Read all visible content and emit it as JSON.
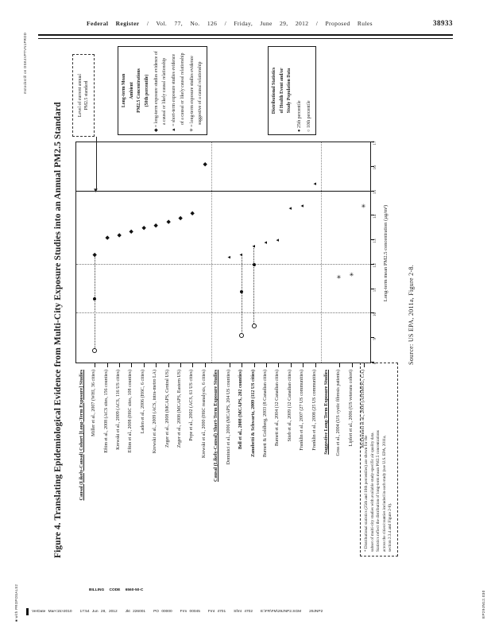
{
  "page_header": {
    "journal": "Federal Register",
    "meta": "/ Vol. 77, No. 126 / Friday, June 29, 2012 / Proposed Rules",
    "page_number": "38933"
  },
  "margins": {
    "stamp_top": "mstockstill on DSK4VPTVN1PROD",
    "stamp_bottom": "■ with PROPOSALS2",
    "graphic_tag": "EP29JN12.030"
  },
  "figure": {
    "title": "Figure 4. Translating Epidemiological Evidence from Multi-City Exposure Studies into an Annual PM2.5 Standard",
    "standard_note": {
      "line1": "Level of current annual",
      "line2": "PM2.5 standard"
    },
    "legend_symbols": {
      "header_lines": [
        "Long-term Mean",
        "Ambient",
        "PM2.5 Concentrations",
        "(50th percentile)"
      ],
      "entries": [
        {
          "symbol": "◆",
          "text": "= long-term exposure studies evidence of a causal or likely causal relationship"
        },
        {
          "symbol": "▲",
          "text": "= short-term exposure studies evidence of a causal or likely causal relationship"
        },
        {
          "symbol": "✳",
          "text": "= long-term exposure studies evidence suggestive of a causal relationship"
        }
      ]
    },
    "legend_stats": {
      "header_lines": [
        "Distributional Statistics",
        "of Health Event and/or",
        "Study Population Data"
      ],
      "entries": [
        {
          "symbol": "●",
          "text": "25th percentile"
        },
        {
          "symbol": "○",
          "text": "10th percentile"
        }
      ]
    },
    "source": "Source: US EPA, 2011a, Figure 2-8.",
    "notes": [
      "* Distributional statistics (25th and 10th percentiles) are shown for the",
      "subset of multi-city studies with available study-specific air quality data.",
      "Statistics reflect the distribution of long-term mean PM2.5 concentrations",
      "across the cities/counties included in each study (see U.S. EPA, 2011a,",
      "section 2.3.4 and Figure 2-8)."
    ]
  },
  "chart_data": {
    "type": "scatter",
    "orientation": "horizontal dot plot, printed rotated 90° counterclockwise on the page",
    "title": "Figure 4. Translating Epidemiological Evidence from Multi-City Exposure Studies into an Annual PM2.5 Standard",
    "xlabel": "Long-term mean PM2.5 concentration (µg/m³)",
    "axis": {
      "min": 8,
      "max": 17,
      "ticks": [
        8,
        9,
        10,
        11,
        12,
        13,
        14,
        15,
        16,
        17
      ],
      "reference_line": 15,
      "dotted_gridlines": [
        10,
        12
      ]
    },
    "rows": [
      {
        "type": "header",
        "label": "Causal (Likely-Causal) Cohort [Long-Term Exposure] Studies"
      },
      {
        "type": "study",
        "label": "Miller et al., 2007 (WHI, 36 cities)",
        "symbol": "diamond",
        "mean": 12.4,
        "p25": 10.6,
        "p10": 8.5
      },
      {
        "type": "study",
        "label": "Eftim et al., 2008 (ACS sites, 156 counties)",
        "symbol": "diamond",
        "mean": 13.1
      },
      {
        "type": "study",
        "label": "Krewski et al., 2009 (ACS, 116 US cities)",
        "symbol": "diamond",
        "mean": 13.2
      },
      {
        "type": "study",
        "label": "Eftim et al., 2008 (H6C sites, 108 counties)",
        "symbol": "diamond",
        "mean": 13.35
      },
      {
        "type": "study",
        "label": "Laden et al., 2006 (H6C, 6 cities)",
        "symbol": "diamond",
        "mean": 13.5
      },
      {
        "type": "study",
        "label": "Krewski et al., 2009 (ACS, intra-metro LA)",
        "symbol": "diamond",
        "mean": 13.6
      },
      {
        "type": "study",
        "label": "Zeger et al., 2008 (MCAPS, Central US)",
        "symbol": "diamond",
        "mean": 13.75
      },
      {
        "type": "study",
        "label": "Zeger et al., 2008 (MCAPS, Eastern US)",
        "symbol": "diamond",
        "mean": 13.9
      },
      {
        "type": "study",
        "label": "Pope et al., 2002 (ACS, 61 US cities)",
        "symbol": "diamond",
        "mean": 14.1
      },
      {
        "type": "study",
        "label": "Krewski et al., 2000 (H6C reanalysis, 6 cities)",
        "symbol": "diamond",
        "mean": 16.1
      },
      {
        "type": "header",
        "label": "Causal (Likely-Causal) Short-Term Exposure Studies"
      },
      {
        "type": "study",
        "label": "Dominici et al., 2006 (MCAPS, 204 US counties)",
        "symbol": "triangle",
        "mean": 12.3
      },
      {
        "type": "study",
        "label": "Bell et al., 2008 (MCAPS, 202 counties)",
        "symbol": "triangle",
        "mean": 12.4,
        "p25": 10.9,
        "p10": 9.1,
        "bold": true
      },
      {
        "type": "study",
        "label": "Zanobetti & Schwartz, 2009 (112 US cities)",
        "symbol": "triangle",
        "mean": 12.75,
        "p25": 12.0,
        "p10": 9.5,
        "bold": true
      },
      {
        "type": "study",
        "label": "Burnett & Goldberg, 2003 (8 Canadian cities)",
        "symbol": "triangle",
        "mean": 12.9
      },
      {
        "type": "study",
        "label": "Burnett et al., 2004 (12 Canadian cities)",
        "symbol": "triangle",
        "mean": 13.0
      },
      {
        "type": "study",
        "label": "Stieb et al., 2009 (12 Canadian cities)",
        "symbol": "triangle",
        "mean": 14.3
      },
      {
        "type": "study",
        "label": "Franklin et al., 2007 (27 US communities)",
        "symbol": "triangle",
        "mean": 14.4
      },
      {
        "type": "study",
        "label": "Franklin et al., 2008 (25 US communities)",
        "symbol": "triangle",
        "mean": 15.3
      },
      {
        "type": "header",
        "label": "Suggestive Long-Term Exposure Studies"
      },
      {
        "type": "study",
        "label": "Goss et al., 2004 (US cystic fibrosis patients)",
        "symbol": "asterisk",
        "mean": 11.5
      },
      {
        "type": "study",
        "label": "Lipfert et al., 2006 (US veterans cohort)",
        "symbol": "asterisk",
        "mean": 11.6
      },
      {
        "type": "study",
        "label": "McDonnell et al., 2000 (AHSMOG, CA)",
        "symbol": "asterisk",
        "mean": 14.4
      }
    ]
  },
  "footer": {
    "billing_code": "BILLING CODE 6560-50-C",
    "verdate_line": "VerDate Mar<15>2010   17:54 Jun 28, 2012   Jkt 226001   PO 00000   Frm 00045   Fmt 4701   Sfmt 4702   E:\\FR\\FM\\29JNP2.SGM   29JNP2"
  }
}
